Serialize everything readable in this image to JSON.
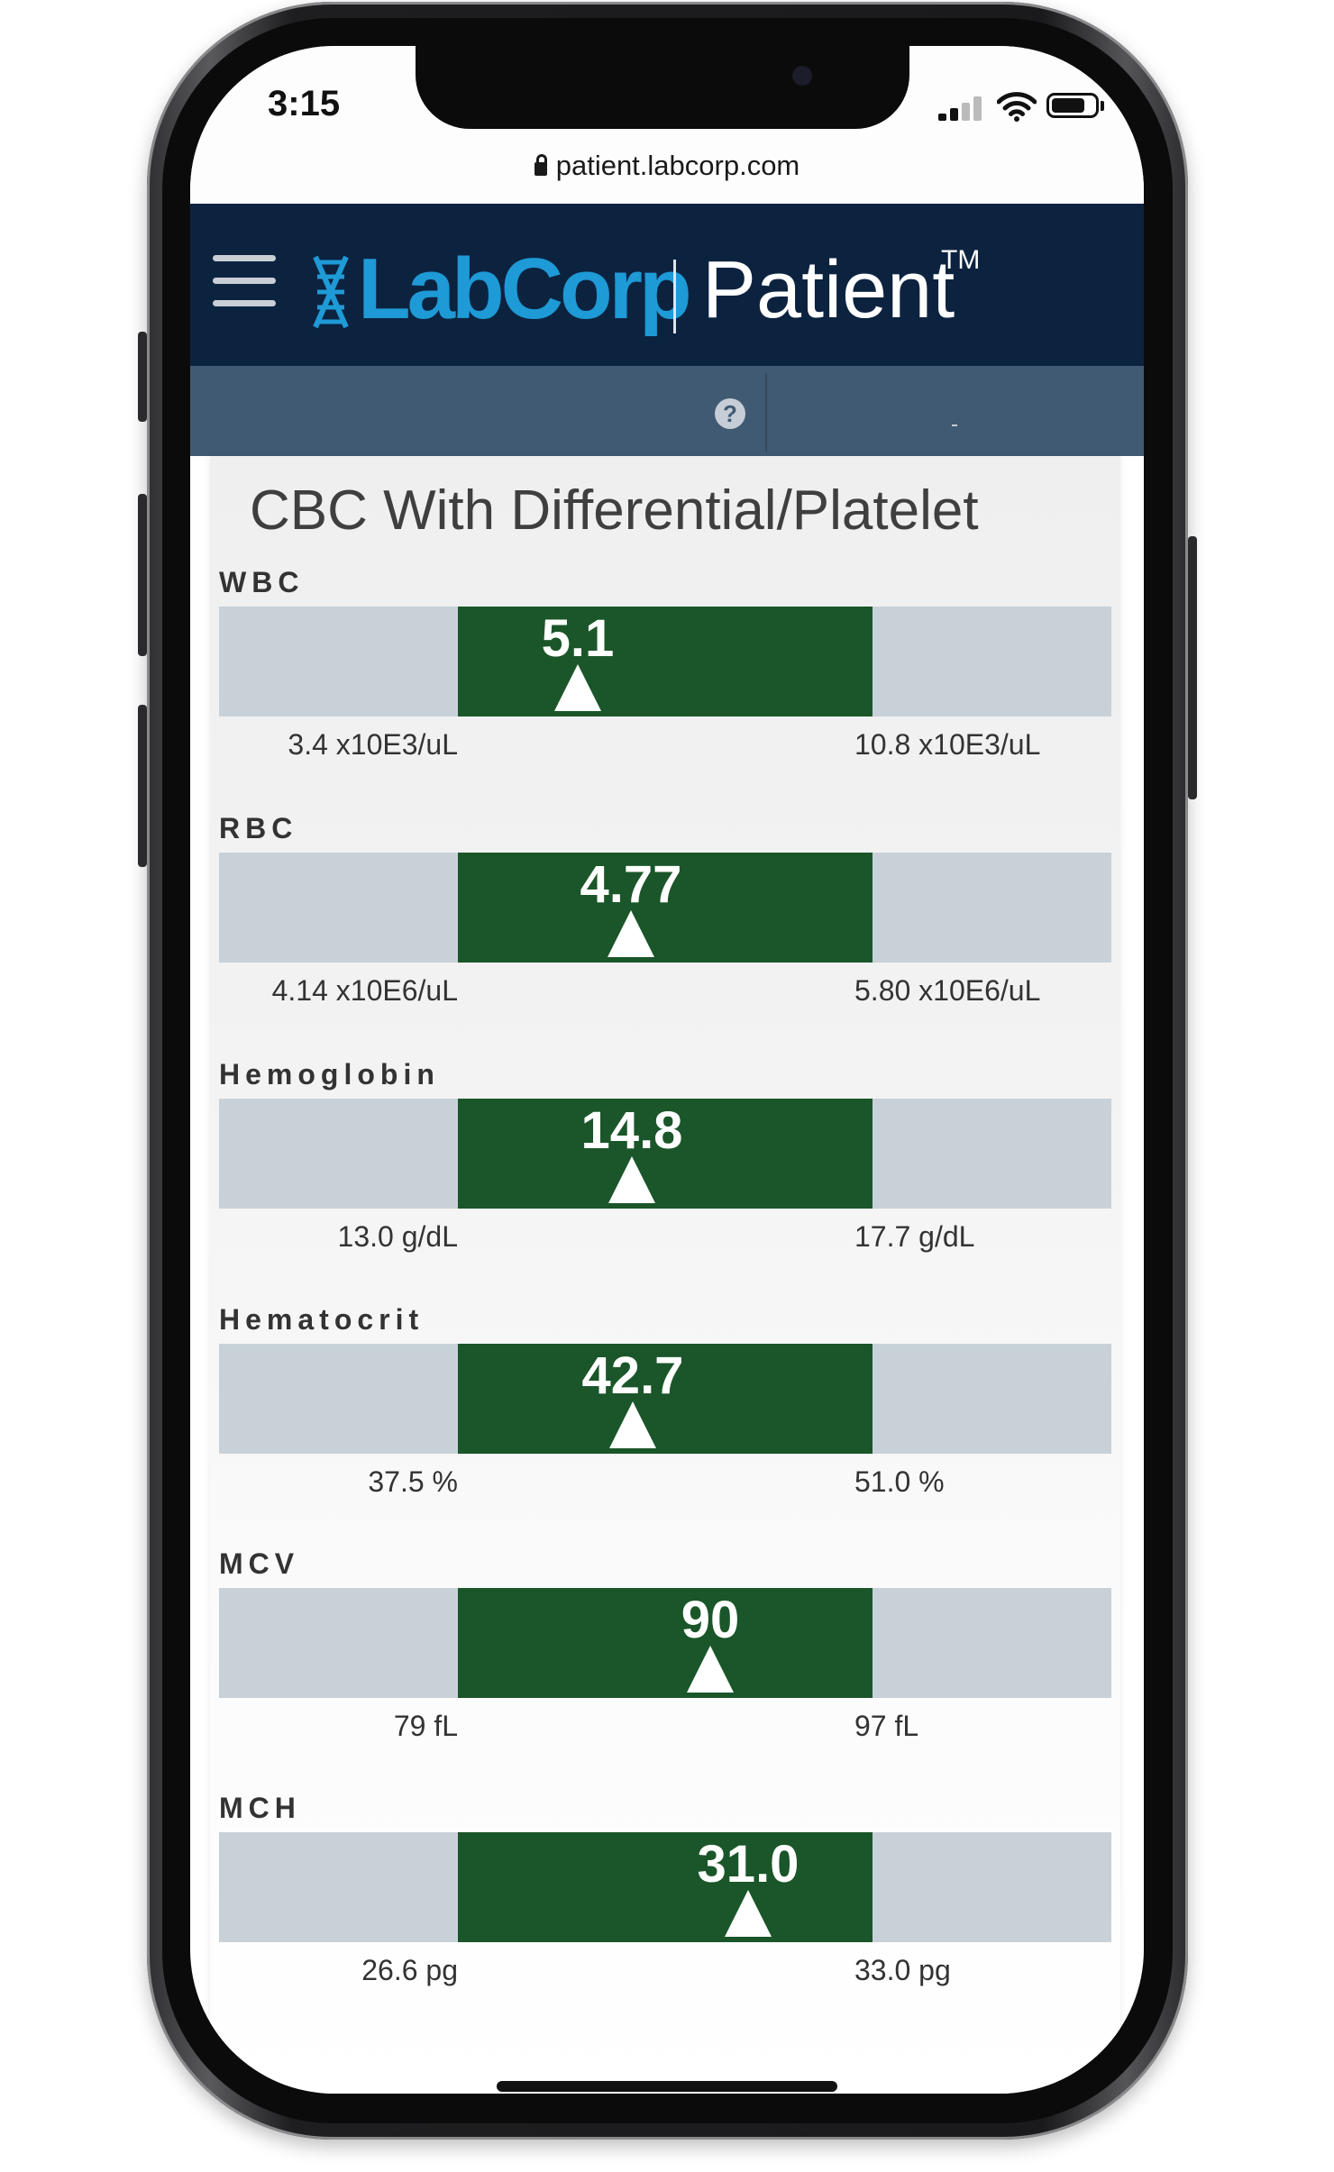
{
  "status_bar": {
    "time": "3:15"
  },
  "browser": {
    "url": "patient.labcorp.com"
  },
  "header": {
    "brand": "LabCorp",
    "product": "Patient",
    "trademark": "TM"
  },
  "toolbar": {
    "help_symbol": "?"
  },
  "panel": {
    "title": "CBC With Differential/Platelet",
    "results": [
      {
        "name": "WBC",
        "value": "5.1",
        "low": "3.4 x10E3/uL",
        "high": "10.8 x10E3/uL",
        "position": 0.29
      },
      {
        "name": "RBC",
        "value": "4.77",
        "low": "4.14 x10E6/uL",
        "high": "5.80 x10E6/uL",
        "position": 0.42
      },
      {
        "name": "Hemoglobin",
        "value": "14.8",
        "low": "13.0 g/dL",
        "high": "17.7 g/dL",
        "position": 0.42
      },
      {
        "name": "Hematocrit",
        "value": "42.7",
        "low": "37.5 %",
        "high": "51.0 %",
        "position": 0.42
      },
      {
        "name": "MCV",
        "value": "90",
        "low": "79 fL",
        "high": "97 fL",
        "position": 0.61
      },
      {
        "name": "MCH",
        "value": "31.0",
        "low": "26.6 pg",
        "high": "33.0 pg",
        "position": 0.7
      }
    ]
  },
  "colors": {
    "header_bg": "#0c2340",
    "brand_blue": "#1e9ad6",
    "toolbar_bg": "#415a73",
    "in_range_green": "#1a5629",
    "out_of_range_gray": "#c8d1d8"
  }
}
